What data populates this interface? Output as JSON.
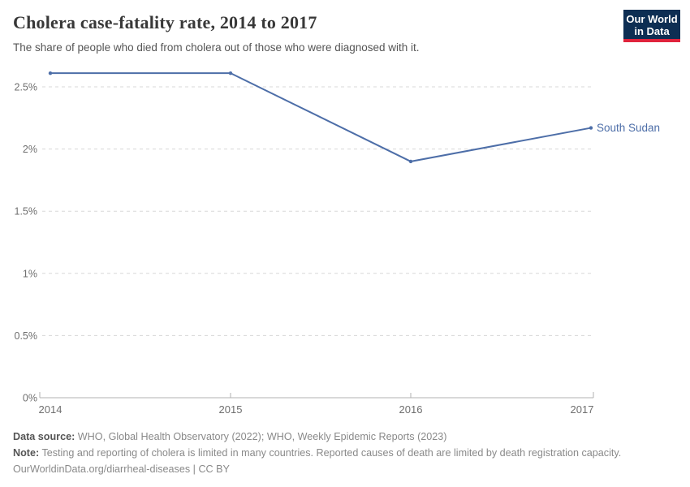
{
  "header": {
    "title": "Cholera case-fatality rate, 2014 to 2017",
    "subtitle": "The share of people who died from cholera out of those who were diagnosed with it."
  },
  "logo": {
    "line1": "Our World",
    "line2": "in Data",
    "bg_color": "#0d2e53",
    "accent_color": "#e0233c"
  },
  "chart_data": {
    "type": "line",
    "title": "Cholera case-fatality rate, 2014 to 2017",
    "x": [
      2014,
      2015,
      2016,
      2017
    ],
    "x_tick_labels": [
      "2014",
      "2015",
      "2016",
      "2017"
    ],
    "series": [
      {
        "name": "South Sudan",
        "color": "#4d6ea8",
        "values": [
          2.61,
          2.61,
          1.9,
          2.17
        ]
      }
    ],
    "xlabel": "",
    "ylabel": "",
    "ylim": [
      0,
      2.7
    ],
    "yticks": [
      0,
      0.5,
      1,
      1.5,
      2,
      2.5
    ],
    "ytick_labels": [
      "0%",
      "0.5%",
      "1%",
      "1.5%",
      "2%",
      "2.5%"
    ],
    "grid": "dashed-horizontal",
    "gridline_color": "#d8d8d8",
    "axis_color": "#b0b0b0",
    "tick_label_color": "#6f6f6f",
    "legend_position": "end-of-line-label"
  },
  "footer": {
    "datasource_label": "Data source:",
    "datasource_text": " WHO, Global Health Observatory (2022); WHO, Weekly Epidemic Reports (2023)",
    "note_label": "Note:",
    "note_text": " Testing and reporting of cholera is limited in many countries. Reported causes of death are limited by death registration capacity.",
    "license_url_text": "OurWorldinData.org/diarrheal-diseases",
    "license_suffix": " | CC BY"
  }
}
